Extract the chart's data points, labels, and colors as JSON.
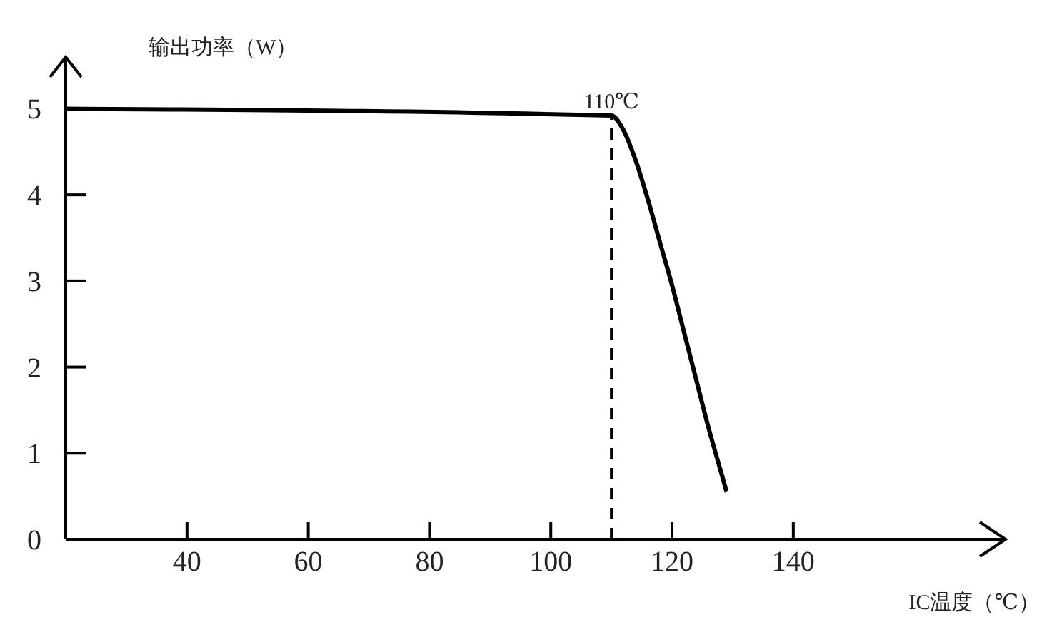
{
  "chart_data": {
    "type": "line",
    "xlabel": "IC温度（℃）",
    "ylabel": "输出功率（W）",
    "series": [
      {
        "color": "#000000",
        "x": [
          20,
          110,
          112,
          114,
          116,
          118,
          120,
          122,
          124,
          126,
          128,
          129
        ],
        "values": [
          5,
          4.92,
          4.75,
          4.4,
          3.95,
          3.45,
          2.95,
          2.4,
          1.85,
          1.3,
          0.8,
          0.55
        ]
      }
    ],
    "xlim": [
      20,
      175
    ],
    "xticks": [
      {
        "value": 20,
        "label": null
      },
      40,
      60,
      80,
      100,
      120,
      140
    ],
    "ylim": [
      0,
      5.6
    ],
    "yticks": [
      0,
      1,
      2,
      3,
      4,
      5
    ],
    "ref_lines": [
      {
        "axis": "x",
        "value": 110,
        "label": "110℃",
        "line_style": "dashed",
        "color": "#000000"
      }
    ],
    "grid": false,
    "legend": false,
    "marker": "none",
    "line_style": "solid"
  }
}
